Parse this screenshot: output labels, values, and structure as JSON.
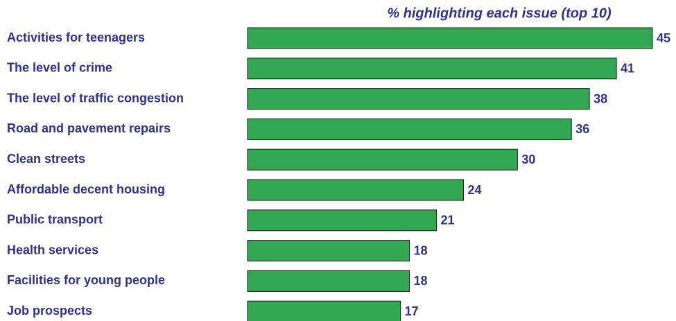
{
  "chart_data": {
    "type": "bar",
    "orientation": "horizontal",
    "title": "% highlighting each issue (top 10)",
    "categories": [
      "Activities for teenagers",
      "The level of crime",
      "The level of traffic congestion",
      "Road and pavement repairs",
      "Clean streets",
      "Affordable decent housing",
      "Public transport",
      "Health services",
      "Facilities for young people",
      "Job prospects"
    ],
    "values": [
      45,
      41,
      38,
      36,
      30,
      24,
      21,
      18,
      18,
      17
    ],
    "color": "#33a852"
  }
}
